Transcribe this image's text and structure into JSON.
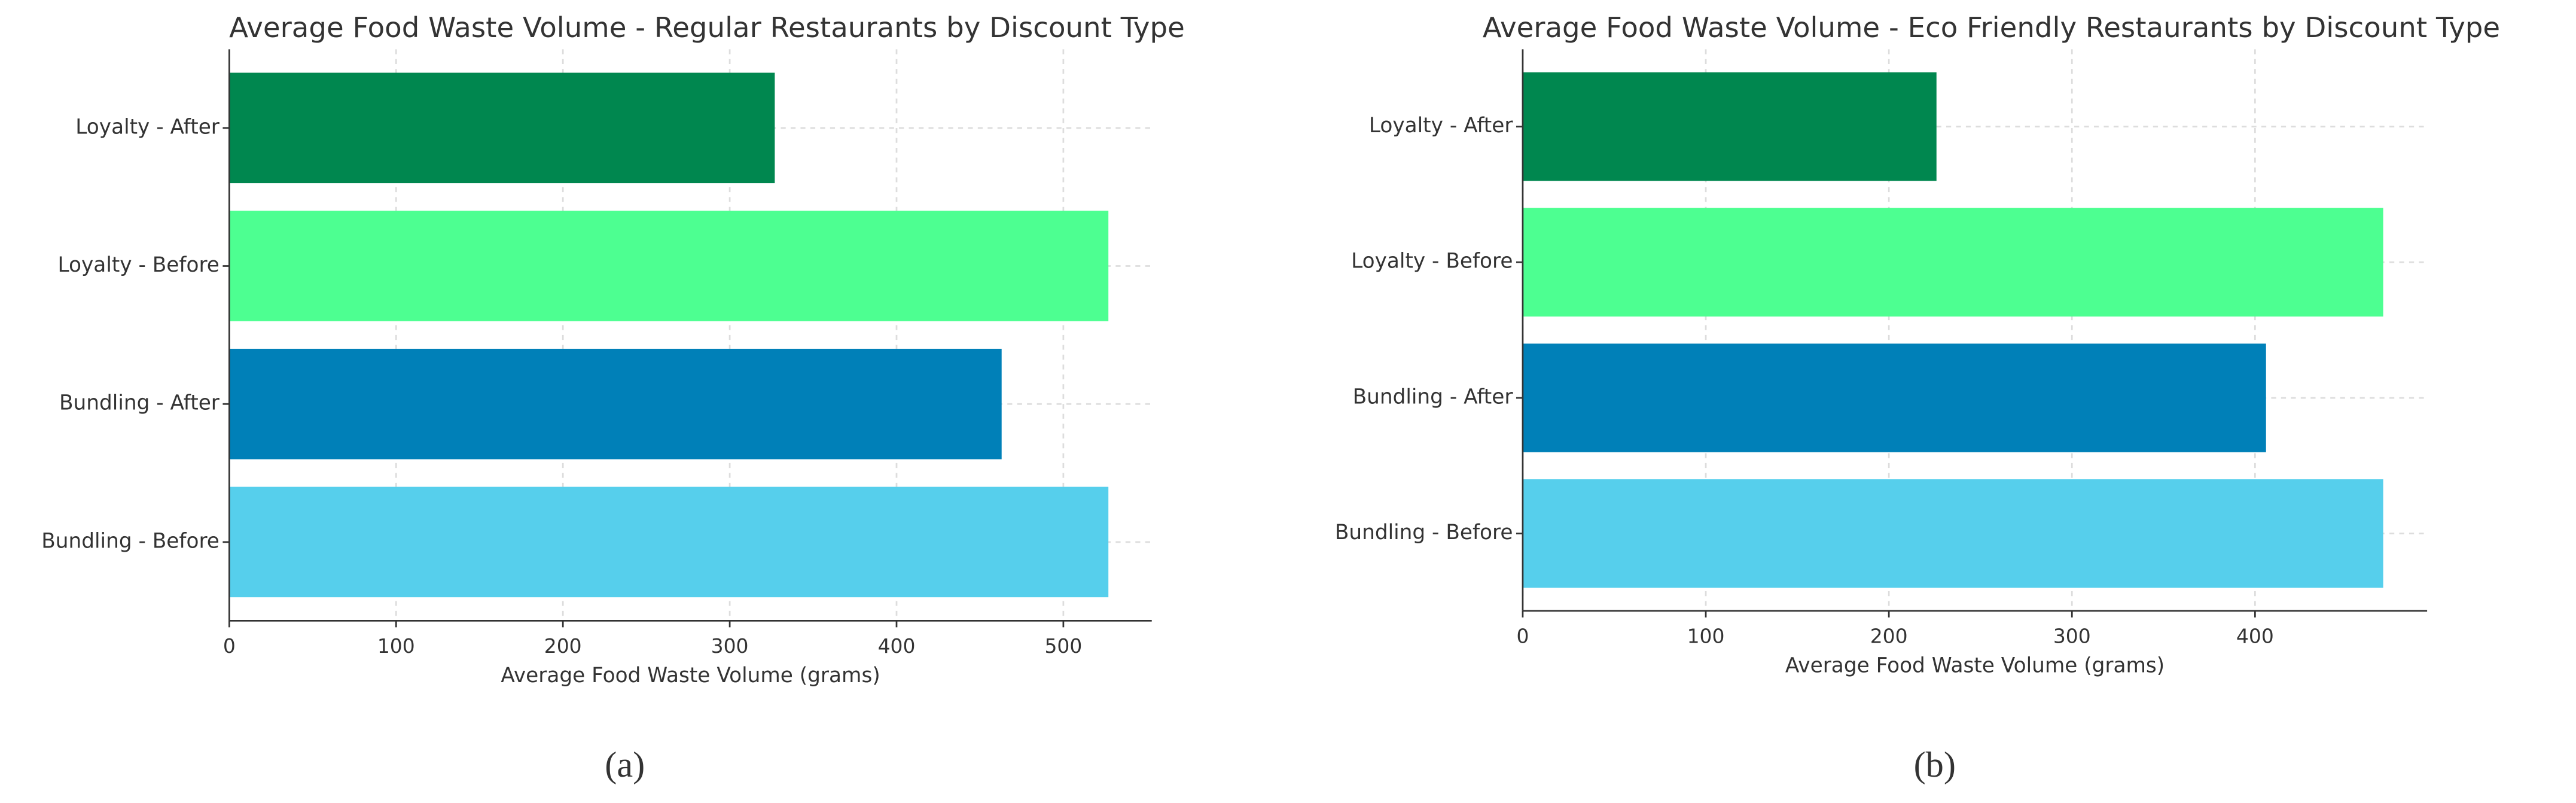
{
  "chart_data": [
    {
      "type": "barh",
      "title": "Average Food Waste Volume - Regular Restaurants by Discount Type",
      "x_label": "Average Food Waste Volume (grams)",
      "caption": "(a)",
      "categories": [
        "Loyalty - After",
        "Loyalty - Before",
        "Bundling - After",
        "Bundling - Before"
      ],
      "values": [
        327,
        527,
        463,
        527
      ],
      "colors": [
        "#00874f",
        "#4dff91",
        "#0080b8",
        "#56cfec"
      ],
      "xlim": [
        0,
        553
      ],
      "xticks": [
        0,
        100,
        200,
        300,
        400,
        500
      ],
      "grid": true
    },
    {
      "type": "barh",
      "title": "Average Food Waste Volume - Eco Friendly Restaurants by Discount Type",
      "x_label": "Average Food Waste Volume (grams)",
      "caption": "(b)",
      "categories": [
        "Loyalty - After",
        "Loyalty - Before",
        "Bundling - After",
        "Bundling - Before"
      ],
      "values": [
        226,
        470,
        406,
        470
      ],
      "colors": [
        "#00874f",
        "#4dff91",
        "#0080b8",
        "#56cfec"
      ],
      "xlim": [
        0,
        494
      ],
      "xticks": [
        0,
        100,
        200,
        300,
        400
      ],
      "grid": true
    }
  ]
}
